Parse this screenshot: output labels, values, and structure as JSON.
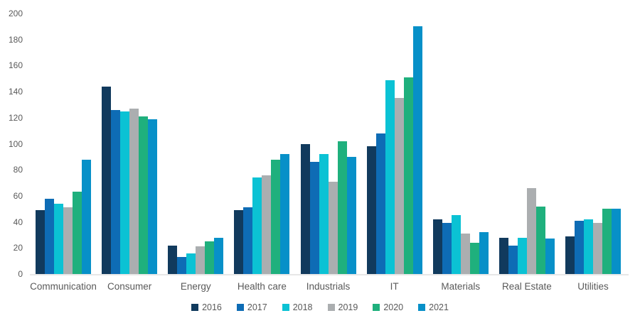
{
  "chart": {
    "background": "#ffffff",
    "text_color": "#595959",
    "axis_line_color": "#e7e7e7"
  },
  "chart_data": {
    "type": "bar",
    "title": "",
    "xlabel": "",
    "ylabel": "",
    "ylim": [
      0,
      200
    ],
    "ytick_step": 20,
    "yticks": [
      0,
      20,
      40,
      60,
      80,
      100,
      120,
      140,
      160,
      180,
      200
    ],
    "grid": false,
    "legend_position": "bottom",
    "categories": [
      "Communication",
      "Consumer",
      "Energy",
      "Health care",
      "Industrials",
      "IT",
      "Materials",
      "Real Estate",
      "Utilities"
    ],
    "series": [
      {
        "name": "2016",
        "color": "#113a5d",
        "values": [
          49,
          144,
          22,
          49,
          100,
          98,
          42,
          28,
          29
        ]
      },
      {
        "name": "2017",
        "color": "#0e6cb5",
        "values": [
          58,
          126,
          13,
          51,
          86,
          108,
          39,
          22,
          41
        ]
      },
      {
        "name": "2018",
        "color": "#0bc2d4",
        "values": [
          54,
          125,
          16,
          74,
          92,
          149,
          45,
          28,
          42
        ]
      },
      {
        "name": "2019",
        "color": "#abaeb0",
        "values": [
          51,
          127,
          21,
          76,
          71,
          135,
          31,
          66,
          39
        ]
      },
      {
        "name": "2020",
        "color": "#1fb07d",
        "values": [
          63,
          121,
          25,
          88,
          102,
          151,
          24,
          52,
          50
        ]
      },
      {
        "name": "2021",
        "color": "#0790c8",
        "values": [
          88,
          119,
          28,
          92,
          90,
          190,
          32,
          27,
          50
        ]
      }
    ]
  }
}
